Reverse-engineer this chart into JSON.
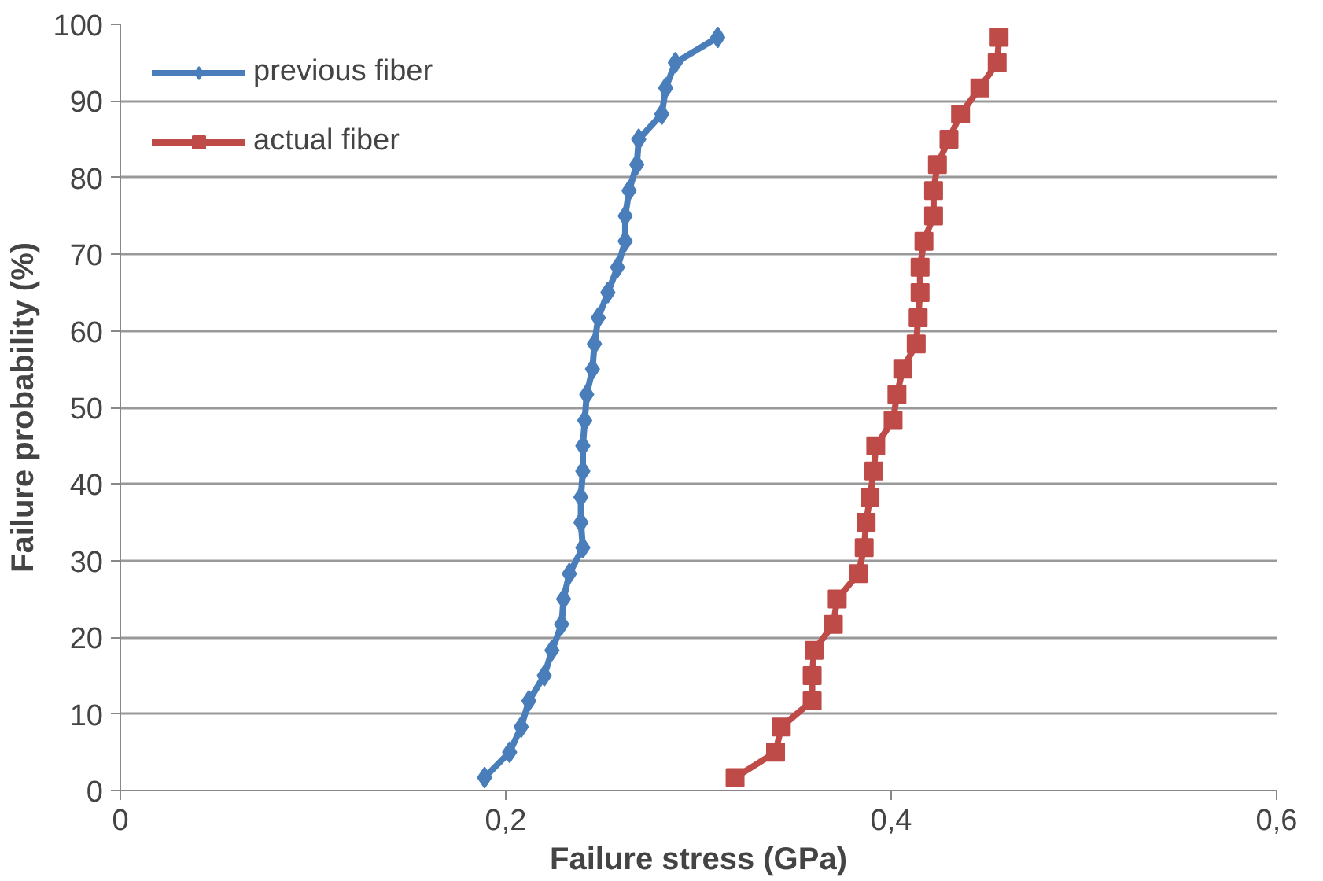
{
  "chart_data": {
    "type": "line",
    "xlabel": "Failure stress (GPa)",
    "ylabel": "Failure probability (%)",
    "xlim": [
      0,
      0.6
    ],
    "xticks": [
      0,
      {
        "value": 0.2,
        "label": "0,2"
      },
      {
        "value": 0.4,
        "label": "0,4"
      },
      {
        "value": 0.6,
        "label": "0,6"
      }
    ],
    "ylim": [
      0,
      100
    ],
    "yticks": [
      0,
      10,
      20,
      30,
      40,
      50,
      60,
      70,
      80,
      90,
      100
    ],
    "grid": "y",
    "legend": "top left",
    "line_style": "solid",
    "series": [
      {
        "name": "previous fiber",
        "color": "#4a7ebb",
        "marker": "diamond",
        "x": [
          0.189,
          0.202,
          0.208,
          0.212,
          0.22,
          0.224,
          0.229,
          0.23,
          0.233,
          0.24,
          0.239,
          0.239,
          0.24,
          0.24,
          0.241,
          0.242,
          0.245,
          0.246,
          0.248,
          0.253,
          0.258,
          0.262,
          0.262,
          0.264,
          0.268,
          0.269,
          0.281,
          0.283,
          0.288,
          0.31
        ],
        "values": [
          1.7,
          5,
          8.3,
          11.7,
          15,
          18.3,
          21.7,
          25,
          28.3,
          31.7,
          35,
          38.3,
          41.7,
          45,
          48.3,
          51.7,
          55,
          58.3,
          61.7,
          65,
          68.3,
          71.7,
          75,
          78.3,
          81.7,
          85,
          88.3,
          91.7,
          95,
          98.3
        ]
      },
      {
        "name": "actual fiber",
        "color": "#be4b48",
        "marker": "square",
        "x": [
          0.319,
          0.34,
          0.343,
          0.359,
          0.359,
          0.36,
          0.37,
          0.372,
          0.383,
          0.386,
          0.387,
          0.389,
          0.391,
          0.392,
          0.401,
          0.403,
          0.406,
          0.413,
          0.414,
          0.415,
          0.415,
          0.417,
          0.422,
          0.422,
          0.424,
          0.43,
          0.436,
          0.446,
          0.455,
          0.456
        ],
        "values": [
          1.7,
          5,
          8.3,
          11.7,
          15,
          18.3,
          21.7,
          25,
          28.3,
          31.7,
          35,
          38.3,
          41.7,
          45,
          48.3,
          51.7,
          55,
          58.3,
          61.7,
          65,
          68.3,
          71.7,
          75,
          78.3,
          81.7,
          85,
          88.3,
          91.7,
          95,
          98.3
        ]
      }
    ]
  }
}
